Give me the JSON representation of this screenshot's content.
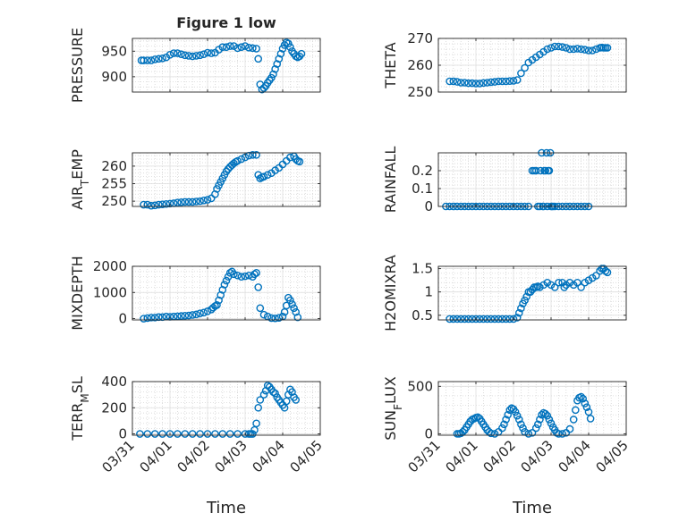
{
  "figure": {
    "title": "Figure 1 low",
    "marker_color": "#0072bd",
    "x_ticks": [
      "03/31",
      "04/01",
      "04/02",
      "04/03",
      "04/04",
      "04/05"
    ],
    "xlabel": "Time"
  },
  "chart_data": [
    {
      "type": "scatter",
      "name": "pressure",
      "ylabel": "PRESSURE",
      "ylim": [
        870,
        975
      ],
      "yticks": [
        900,
        950
      ],
      "x": [
        0.24,
        0.3,
        0.4,
        0.5,
        0.6,
        0.7,
        0.8,
        0.9,
        1.0,
        1.1,
        1.2,
        1.3,
        1.4,
        1.5,
        1.6,
        1.7,
        1.8,
        1.9,
        2.0,
        2.1,
        2.2,
        2.3,
        2.4,
        2.5,
        2.6,
        2.7,
        2.8,
        2.9,
        3.0,
        3.1,
        3.2,
        3.3,
        3.35,
        3.4,
        3.45,
        3.5,
        3.55,
        3.6,
        3.65,
        3.7,
        3.75,
        3.8,
        3.85,
        3.9,
        3.95,
        4.0,
        4.05,
        4.1,
        4.15,
        4.2,
        4.25,
        4.3,
        4.35,
        4.4,
        4.45,
        4.5
      ],
      "y": [
        932,
        932,
        932,
        932,
        934,
        935,
        936,
        938,
        943,
        946,
        946,
        944,
        942,
        941,
        940,
        941,
        942,
        944,
        947,
        946,
        947,
        953,
        958,
        958,
        960,
        960,
        956,
        958,
        960,
        957,
        956,
        955,
        935,
        885,
        875,
        878,
        882,
        888,
        893,
        898,
        905,
        915,
        925,
        935,
        945,
        955,
        962,
        967,
        965,
        958,
        950,
        945,
        940,
        938,
        940,
        945
      ]
    },
    {
      "type": "scatter",
      "name": "theta",
      "ylabel": "THETA",
      "ylim": [
        250,
        270
      ],
      "yticks": [
        250,
        260,
        270
      ],
      "x": [
        0.3,
        0.4,
        0.5,
        0.6,
        0.7,
        0.8,
        0.9,
        1.0,
        1.1,
        1.2,
        1.3,
        1.4,
        1.5,
        1.6,
        1.7,
        1.8,
        1.9,
        2.0,
        2.1,
        2.2,
        2.3,
        2.4,
        2.5,
        2.6,
        2.7,
        2.8,
        2.9,
        3.0,
        3.1,
        3.2,
        3.3,
        3.4,
        3.5,
        3.6,
        3.7,
        3.8,
        3.9,
        4.0,
        4.1,
        4.2,
        4.3,
        4.35,
        4.4,
        4.45,
        4.5
      ],
      "y": [
        254,
        254,
        253.8,
        253.5,
        253.5,
        253.3,
        253.3,
        253.2,
        253.2,
        253.4,
        253.5,
        253.7,
        253.8,
        254,
        254,
        254,
        254.1,
        254.2,
        254.5,
        257,
        259,
        261,
        262,
        263,
        264,
        265,
        266,
        266.5,
        267,
        267,
        266.8,
        266.5,
        266,
        266,
        266.2,
        266,
        265.8,
        265.5,
        265.5,
        266,
        266.5,
        266.6,
        266.5,
        266.5,
        266.5
      ]
    },
    {
      "type": "scatter",
      "name": "air-temp",
      "ylabel": "AIR_TEMP",
      "ylim": [
        248.5,
        263.8
      ],
      "yticks": [
        250,
        255,
        260
      ],
      "x": [
        0.3,
        0.4,
        0.5,
        0.6,
        0.7,
        0.8,
        0.9,
        1.0,
        1.1,
        1.2,
        1.3,
        1.4,
        1.5,
        1.6,
        1.7,
        1.8,
        1.9,
        2.0,
        2.1,
        2.2,
        2.25,
        2.3,
        2.35,
        2.4,
        2.45,
        2.5,
        2.55,
        2.6,
        2.65,
        2.7,
        2.75,
        2.8,
        2.9,
        3.0,
        3.1,
        3.2,
        3.3,
        3.35,
        3.4,
        3.45,
        3.5,
        3.6,
        3.7,
        3.8,
        3.9,
        4.0,
        4.1,
        4.2,
        4.3,
        4.35,
        4.4,
        4.45
      ],
      "y": [
        249,
        249,
        248.7,
        248.8,
        249,
        249.1,
        249.2,
        249.3,
        249.4,
        249.6,
        249.7,
        249.8,
        249.8,
        249.8,
        249.9,
        250,
        250.2,
        250.4,
        250.8,
        252,
        253.5,
        254.5,
        255.5,
        256.5,
        257.5,
        258.5,
        259.2,
        259.8,
        260.3,
        260.8,
        261.2,
        261.5,
        262,
        262.5,
        263,
        263.2,
        263.2,
        257.5,
        256.5,
        256.8,
        257,
        257.5,
        258,
        258.8,
        259.5,
        260.5,
        261.5,
        262.5,
        262.8,
        262,
        261.5,
        261.3
      ]
    },
    {
      "type": "scatter",
      "name": "rainfall",
      "ylabel": "RAINFALL",
      "ylim": [
        0,
        0.3
      ],
      "yticks": [
        0,
        0.1,
        0.2
      ],
      "x": [
        0.2,
        0.3,
        0.4,
        0.5,
        0.6,
        0.7,
        0.8,
        0.9,
        1.0,
        1.1,
        1.2,
        1.3,
        1.4,
        1.5,
        1.6,
        1.7,
        1.8,
        1.9,
        2.0,
        2.1,
        2.2,
        2.3,
        2.4,
        2.5,
        2.55,
        2.6,
        2.65,
        2.7,
        2.72,
        2.75,
        2.78,
        2.8,
        2.82,
        2.85,
        2.88,
        2.9,
        2.92,
        2.95,
        2.98,
        3.0,
        3.02,
        3.05,
        3.1,
        3.2,
        3.3,
        3.4,
        3.5,
        3.6,
        3.7,
        3.8,
        3.9,
        4.0
      ],
      "y": [
        0,
        0,
        0,
        0,
        0,
        0,
        0,
        0,
        0,
        0,
        0,
        0,
        0,
        0,
        0,
        0,
        0,
        0,
        0,
        0,
        0,
        0,
        0,
        0.2,
        0.2,
        0.2,
        0,
        0,
        0.2,
        0.3,
        0,
        0,
        0.2,
        0.2,
        0.3,
        0,
        0.2,
        0.2,
        0.3,
        0,
        0,
        0,
        0,
        0,
        0,
        0,
        0,
        0,
        0,
        0,
        0,
        0
      ]
    },
    {
      "type": "scatter",
      "name": "mixdepth",
      "ylabel": "MIXDEPTH",
      "ylim": [
        -50,
        2000
      ],
      "yticks": [
        0,
        1000,
        2000
      ],
      "x": [
        0.3,
        0.4,
        0.5,
        0.6,
        0.7,
        0.8,
        0.9,
        1.0,
        1.1,
        1.2,
        1.3,
        1.4,
        1.5,
        1.6,
        1.7,
        1.8,
        1.9,
        2.0,
        2.1,
        2.15,
        2.2,
        2.25,
        2.3,
        2.35,
        2.4,
        2.45,
        2.5,
        2.55,
        2.6,
        2.65,
        2.7,
        2.8,
        2.9,
        3.0,
        3.1,
        3.2,
        3.25,
        3.3,
        3.35,
        3.4,
        3.5,
        3.6,
        3.7,
        3.8,
        3.9,
        4.0,
        4.05,
        4.1,
        4.15,
        4.2,
        4.25,
        4.3,
        4.35,
        4.4
      ],
      "y": [
        0,
        20,
        40,
        40,
        60,
        60,
        80,
        70,
        80,
        90,
        100,
        110,
        120,
        140,
        160,
        200,
        230,
        280,
        350,
        420,
        480,
        520,
        700,
        900,
        1100,
        1300,
        1450,
        1600,
        1750,
        1800,
        1700,
        1650,
        1600,
        1620,
        1650,
        1600,
        1700,
        1750,
        1200,
        400,
        150,
        80,
        20,
        10,
        30,
        80,
        250,
        500,
        800,
        700,
        550,
        400,
        250,
        50
      ]
    },
    {
      "type": "scatter",
      "name": "h2omixra",
      "ylabel": "H2OMIXRA",
      "ylim": [
        0.4,
        1.55
      ],
      "yticks": [
        0.5,
        1,
        1.5
      ],
      "x": [
        0.3,
        0.4,
        0.5,
        0.6,
        0.7,
        0.8,
        0.9,
        1.0,
        1.1,
        1.2,
        1.3,
        1.4,
        1.5,
        1.6,
        1.7,
        1.8,
        1.9,
        2.0,
        2.1,
        2.15,
        2.2,
        2.25,
        2.3,
        2.35,
        2.4,
        2.45,
        2.5,
        2.55,
        2.6,
        2.65,
        2.7,
        2.8,
        2.9,
        3.0,
        3.1,
        3.2,
        3.3,
        3.35,
        3.4,
        3.5,
        3.6,
        3.7,
        3.8,
        3.9,
        4.0,
        4.1,
        4.2,
        4.3,
        4.35,
        4.4,
        4.45,
        4.5
      ],
      "y": [
        0.42,
        0.42,
        0.42,
        0.42,
        0.42,
        0.42,
        0.42,
        0.42,
        0.42,
        0.42,
        0.42,
        0.42,
        0.42,
        0.42,
        0.42,
        0.42,
        0.42,
        0.42,
        0.45,
        0.55,
        0.65,
        0.75,
        0.82,
        0.9,
        1.0,
        1.0,
        1.05,
        1.1,
        1.1,
        1.12,
        1.1,
        1.15,
        1.2,
        1.15,
        1.1,
        1.2,
        1.2,
        1.1,
        1.15,
        1.2,
        1.15,
        1.2,
        1.1,
        1.2,
        1.25,
        1.3,
        1.35,
        1.45,
        1.5,
        1.5,
        1.45,
        1.42
      ]
    },
    {
      "type": "scatter",
      "name": "terr-msl",
      "ylabel": "TERR_MSL",
      "ylim": [
        -10,
        400
      ],
      "yticks": [
        0,
        200,
        400
      ],
      "x": [
        0.2,
        0.4,
        0.6,
        0.8,
        1.0,
        1.2,
        1.4,
        1.6,
        1.8,
        2.0,
        2.2,
        2.4,
        2.6,
        2.8,
        3.0,
        3.1,
        3.15,
        3.2,
        3.25,
        3.3,
        3.35,
        3.4,
        3.5,
        3.55,
        3.6,
        3.65,
        3.7,
        3.75,
        3.8,
        3.85,
        3.9,
        3.95,
        4.0,
        4.05,
        4.1,
        4.15,
        4.2,
        4.25,
        4.3,
        4.35
      ],
      "y": [
        0,
        0,
        0,
        0,
        0,
        0,
        0,
        0,
        0,
        0,
        0,
        0,
        0,
        0,
        0,
        0,
        0,
        0,
        30,
        80,
        200,
        260,
        300,
        330,
        370,
        360,
        340,
        320,
        310,
        280,
        260,
        240,
        220,
        200,
        250,
        300,
        340,
        320,
        280,
        260
      ]
    },
    {
      "type": "scatter",
      "name": "sun-flux",
      "ylabel": "SUN_FLUX",
      "ylim": [
        -15,
        550
      ],
      "yticks": [
        0,
        500
      ],
      "x": [
        0.5,
        0.55,
        0.6,
        0.65,
        0.7,
        0.75,
        0.8,
        0.85,
        0.9,
        0.95,
        1.0,
        1.05,
        1.1,
        1.15,
        1.2,
        1.25,
        1.3,
        1.35,
        1.4,
        1.5,
        1.6,
        1.7,
        1.75,
        1.8,
        1.85,
        1.9,
        1.95,
        2.0,
        2.05,
        2.1,
        2.15,
        2.2,
        2.25,
        2.3,
        2.4,
        2.5,
        2.6,
        2.65,
        2.7,
        2.75,
        2.8,
        2.85,
        2.9,
        2.95,
        3.0,
        3.05,
        3.1,
        3.15,
        3.2,
        3.3,
        3.4,
        3.5,
        3.6,
        3.65,
        3.7,
        3.75,
        3.8,
        3.85,
        3.9,
        3.95,
        4.0,
        4.05
      ],
      "y": [
        0,
        0,
        5,
        20,
        40,
        70,
        100,
        130,
        150,
        160,
        170,
        175,
        160,
        130,
        100,
        70,
        40,
        20,
        5,
        0,
        20,
        60,
        100,
        150,
        200,
        250,
        270,
        260,
        230,
        190,
        150,
        100,
        60,
        20,
        0,
        10,
        60,
        100,
        150,
        200,
        220,
        210,
        190,
        150,
        110,
        70,
        40,
        10,
        0,
        0,
        10,
        50,
        150,
        250,
        350,
        380,
        390,
        370,
        320,
        280,
        230,
        160
      ]
    }
  ]
}
